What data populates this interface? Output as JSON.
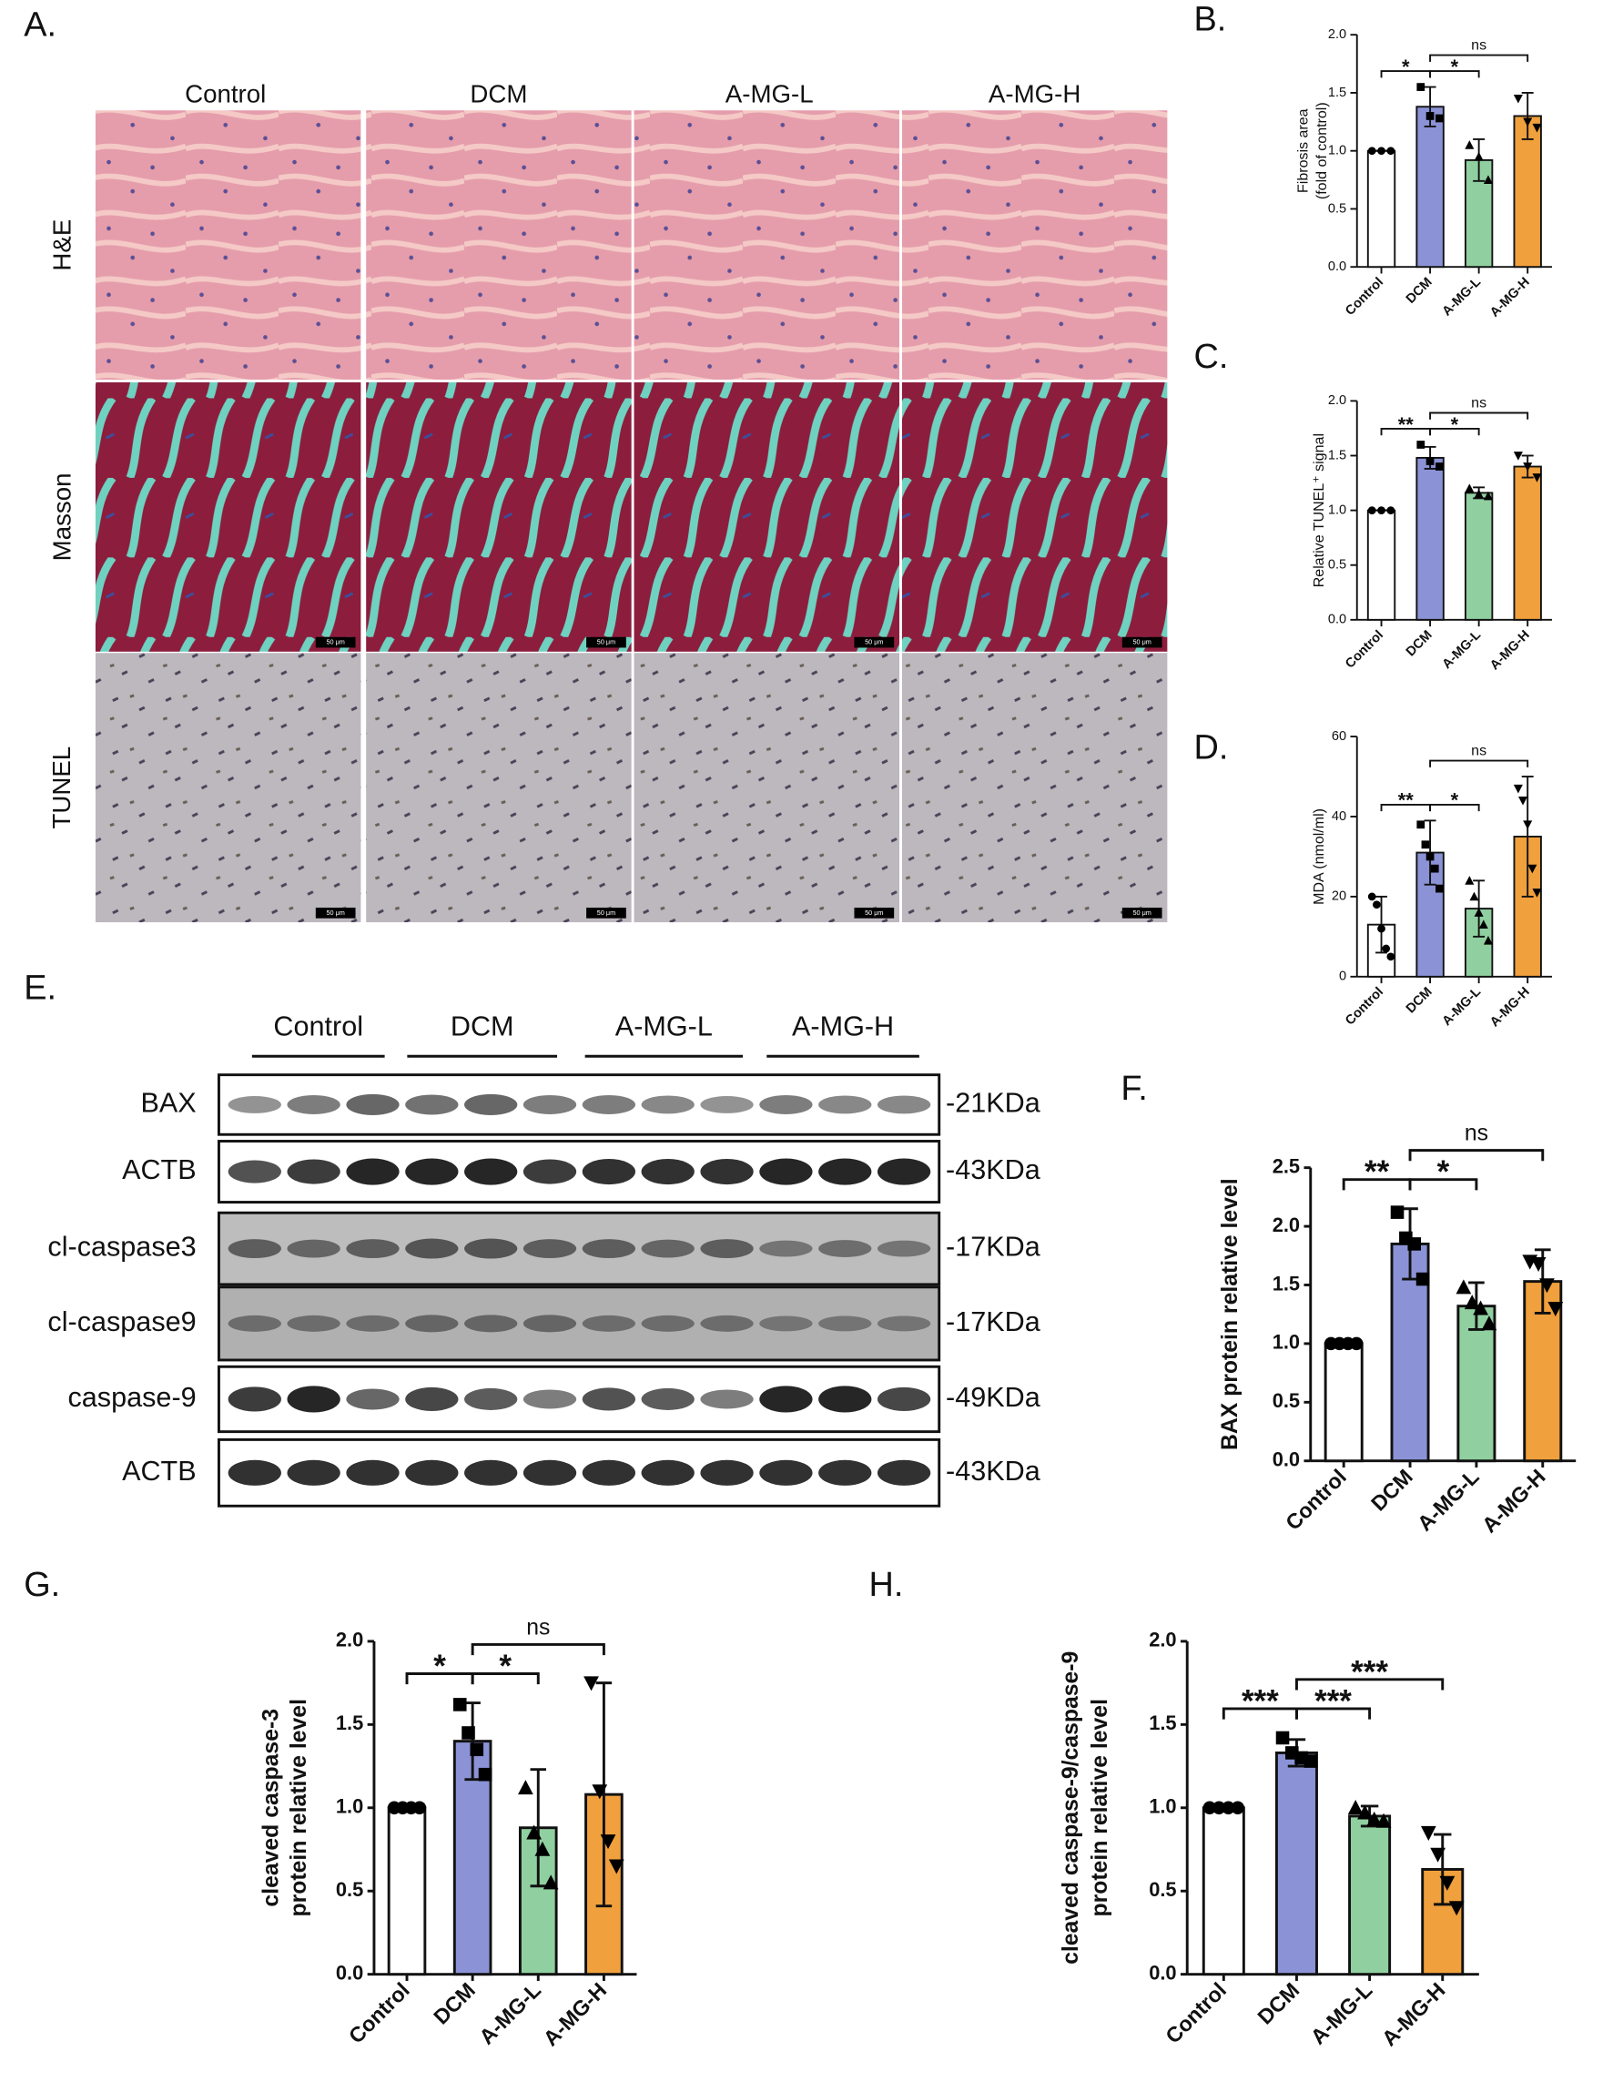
{
  "panels": {
    "a": "A.",
    "b": "B.",
    "c": "C.",
    "d": "D.",
    "e": "E.",
    "f": "F.",
    "g": "G.",
    "h": "H."
  },
  "histology": {
    "columns": [
      "Control",
      "DCM",
      "A-MG-L",
      "A-MG-H"
    ],
    "rows": [
      "H&E",
      "Masson",
      "TUNEL"
    ],
    "scale_bar": "50 μm"
  },
  "blot": {
    "groups": [
      "Control",
      "DCM",
      "A-MG-L",
      "A-MG-H"
    ],
    "rows": [
      {
        "label": "BAX",
        "size": "-21KDa"
      },
      {
        "label": "ACTB",
        "size": "-43KDa"
      },
      {
        "label": "cl-caspase3",
        "size": "-17KDa"
      },
      {
        "label": "cl-caspase9",
        "size": "-17KDa"
      },
      {
        "label": "caspase-9",
        "size": "-49KDa"
      },
      {
        "label": "ACTB",
        "size": "-43KDa"
      }
    ]
  },
  "chart_data": [
    {
      "type": "bar",
      "ylabel": [
        "Fibrosis area",
        "(fold of control)"
      ],
      "categories": [
        "Control",
        "DCM",
        "A-MG-L",
        "A-MG-H"
      ],
      "values": [
        1.0,
        1.38,
        0.92,
        1.3
      ],
      "errors": [
        0,
        0.17,
        0.18,
        0.2
      ],
      "points": [
        [
          1,
          1,
          1
        ],
        [
          1.55,
          1.3,
          1.28
        ],
        [
          1.05,
          0.95,
          0.75
        ],
        [
          1.45,
          1.25,
          1.2
        ]
      ],
      "colors": [
        "#ffffff",
        "#8b93d6",
        "#90d0a0",
        "#f0a03c"
      ],
      "markers": [
        "circle",
        "square",
        "triangle",
        "triangle-down"
      ],
      "ylim": [
        0,
        2
      ],
      "yticks": [
        0,
        0.5,
        1,
        1.5,
        2
      ],
      "yticks_format": [
        {
          "value": 0,
          "label": "0.0"
        },
        {
          "value": 0.5,
          "label": "0.5"
        },
        {
          "value": 1,
          "label": "1.0"
        },
        {
          "value": 1.5,
          "label": "1.5"
        },
        {
          "value": 2,
          "label": "2.0"
        }
      ],
      "comparisons": [
        {
          "groups": [
            "Control",
            "DCM"
          ],
          "label": "*"
        },
        {
          "groups": [
            "DCM",
            "A-MG-L"
          ],
          "label": "*"
        },
        {
          "groups": [
            "DCM",
            "A-MG-H"
          ],
          "label": "ns"
        }
      ]
    },
    {
      "type": "bar",
      "ylabel": [
        "Relative TUNEL⁺ signal"
      ],
      "categories": [
        "Control",
        "DCM",
        "A-MG-L",
        "A-MG-H"
      ],
      "values": [
        1.0,
        1.48,
        1.16,
        1.4
      ],
      "errors": [
        0,
        0.1,
        0.05,
        0.1
      ],
      "points": [
        [
          1,
          1,
          1
        ],
        [
          1.6,
          1.45,
          1.4
        ],
        [
          1.2,
          1.15,
          1.13
        ],
        [
          1.5,
          1.4,
          1.3
        ]
      ],
      "colors": [
        "#ffffff",
        "#8b93d6",
        "#90d0a0",
        "#f0a03c"
      ],
      "markers": [
        "circle",
        "square",
        "triangle",
        "triangle-down"
      ],
      "ylim": [
        0,
        2
      ],
      "yticks": [
        0,
        0.5,
        1,
        1.5,
        2
      ],
      "yticks_format": [
        {
          "value": 0,
          "label": "0.0"
        },
        {
          "value": 0.5,
          "label": "0.5"
        },
        {
          "value": 1,
          "label": "1.0"
        },
        {
          "value": 1.5,
          "label": "1.5"
        },
        {
          "value": 2,
          "label": "2.0"
        }
      ],
      "comparisons": [
        {
          "groups": [
            "Control",
            "DCM"
          ],
          "label": "**"
        },
        {
          "groups": [
            "DCM",
            "A-MG-L"
          ],
          "label": "*"
        },
        {
          "groups": [
            "DCM",
            "A-MG-H"
          ],
          "label": "ns"
        }
      ]
    },
    {
      "type": "bar",
      "ylabel": [
        "MDA (nmol/ml)"
      ],
      "categories": [
        "Control",
        "DCM",
        "A-MG-L",
        "A-MG-H"
      ],
      "values": [
        13,
        31,
        17,
        35
      ],
      "errors": [
        7,
        8,
        7,
        15
      ],
      "points": [
        [
          20,
          18,
          12,
          7,
          5
        ],
        [
          38,
          33,
          30,
          27,
          22
        ],
        [
          24,
          20,
          16,
          13,
          9
        ],
        [
          47,
          44,
          38,
          27,
          21
        ]
      ],
      "colors": [
        "#ffffff",
        "#8b93d6",
        "#90d0a0",
        "#f0a03c"
      ],
      "markers": [
        "circle",
        "square",
        "triangle",
        "triangle-down"
      ],
      "ylim": [
        0,
        60
      ],
      "yticks": [
        0,
        20,
        40,
        60
      ],
      "comparisons": [
        {
          "groups": [
            "Control",
            "DCM"
          ],
          "label": "**"
        },
        {
          "groups": [
            "DCM",
            "A-MG-L"
          ],
          "label": "*"
        },
        {
          "groups": [
            "DCM",
            "A-MG-H"
          ],
          "label": "ns"
        }
      ]
    },
    {
      "type": "bar",
      "ylabel": [
        "BAX protein relative level"
      ],
      "categories": [
        "Control",
        "DCM",
        "A-MG-L",
        "A-MG-H"
      ],
      "values": [
        1.0,
        1.85,
        1.32,
        1.53
      ],
      "errors": [
        0,
        0.3,
        0.2,
        0.27
      ],
      "points": [
        [
          1,
          1,
          1,
          1
        ],
        [
          2.12,
          1.9,
          1.85,
          1.55
        ],
        [
          1.48,
          1.35,
          1.3,
          1.17
        ],
        [
          1.7,
          1.68,
          1.5,
          1.3
        ]
      ],
      "colors": [
        "#ffffff",
        "#8b93d6",
        "#90d0a0",
        "#f0a03c"
      ],
      "markers": [
        "circle",
        "square",
        "triangle",
        "triangle-down"
      ],
      "ylim": [
        0,
        2.5
      ],
      "yticks": [
        0,
        0.5,
        1,
        1.5,
        2,
        2.5
      ],
      "yticks_format": [
        {
          "value": 0,
          "label": "0.0"
        },
        {
          "value": 0.5,
          "label": "0.5"
        },
        {
          "value": 1,
          "label": "1.0"
        },
        {
          "value": 1.5,
          "label": "1.5"
        },
        {
          "value": 2,
          "label": "2.0"
        },
        {
          "value": 2.5,
          "label": "2.5"
        }
      ],
      "comparisons": [
        {
          "groups": [
            "Control",
            "DCM"
          ],
          "label": "**"
        },
        {
          "groups": [
            "DCM",
            "A-MG-L"
          ],
          "label": "*"
        },
        {
          "groups": [
            "DCM",
            "A-MG-H"
          ],
          "label": "ns"
        }
      ]
    },
    {
      "type": "bar",
      "ylabel": [
        "cleaved caspase-3",
        "protein relative level"
      ],
      "categories": [
        "Control",
        "DCM",
        "A-MG-L",
        "A-MG-H"
      ],
      "values": [
        1.0,
        1.4,
        0.88,
        1.08
      ],
      "errors": [
        0,
        0.23,
        0.35,
        0.67
      ],
      "points": [
        [
          1,
          1,
          1,
          1
        ],
        [
          1.62,
          1.45,
          1.35,
          1.2
        ],
        [
          1.12,
          0.85,
          0.75,
          0.55
        ],
        [
          1.75,
          1.1,
          0.8,
          0.65
        ]
      ],
      "colors": [
        "#ffffff",
        "#8b93d6",
        "#90d0a0",
        "#f0a03c"
      ],
      "markers": [
        "circle",
        "square",
        "triangle",
        "triangle-down"
      ],
      "ylim": [
        0,
        2
      ],
      "yticks": [
        0,
        0.5,
        1,
        1.5,
        2
      ],
      "yticks_format": [
        {
          "value": 0,
          "label": "0.0"
        },
        {
          "value": 0.5,
          "label": "0.5"
        },
        {
          "value": 1,
          "label": "1.0"
        },
        {
          "value": 1.5,
          "label": "1.5"
        },
        {
          "value": 2,
          "label": "2.0"
        }
      ],
      "comparisons": [
        {
          "groups": [
            "Control",
            "DCM"
          ],
          "label": "*"
        },
        {
          "groups": [
            "DCM",
            "A-MG-L"
          ],
          "label": "*"
        },
        {
          "groups": [
            "DCM",
            "A-MG-H"
          ],
          "label": "ns"
        }
      ]
    },
    {
      "type": "bar",
      "ylabel": [
        "cleaved caspase-9/caspase-9",
        "protein relative level"
      ],
      "categories": [
        "Control",
        "DCM",
        "A-MG-L",
        "A-MG-H"
      ],
      "values": [
        1.0,
        1.33,
        0.95,
        0.63
      ],
      "errors": [
        0,
        0.08,
        0.06,
        0.21
      ],
      "points": [
        [
          1,
          1,
          1,
          1
        ],
        [
          1.42,
          1.33,
          1.3,
          1.28
        ],
        [
          1.0,
          0.97,
          0.93,
          0.92
        ],
        [
          0.85,
          0.72,
          0.55,
          0.4
        ]
      ],
      "colors": [
        "#ffffff",
        "#8b93d6",
        "#90d0a0",
        "#f0a03c"
      ],
      "markers": [
        "circle",
        "square",
        "triangle",
        "triangle-down"
      ],
      "ylim": [
        0,
        2
      ],
      "yticks": [
        0,
        0.5,
        1,
        1.5,
        2
      ],
      "yticks_format": [
        {
          "value": 0,
          "label": "0.0"
        },
        {
          "value": 0.5,
          "label": "0.5"
        },
        {
          "value": 1,
          "label": "1.0"
        },
        {
          "value": 1.5,
          "label": "1.5"
        },
        {
          "value": 2,
          "label": "2.0"
        }
      ],
      "comparisons": [
        {
          "groups": [
            "Control",
            "DCM"
          ],
          "label": "***"
        },
        {
          "groups": [
            "DCM",
            "A-MG-L"
          ],
          "label": "***"
        },
        {
          "groups": [
            "DCM",
            "A-MG-H"
          ],
          "label": "***"
        }
      ]
    }
  ]
}
